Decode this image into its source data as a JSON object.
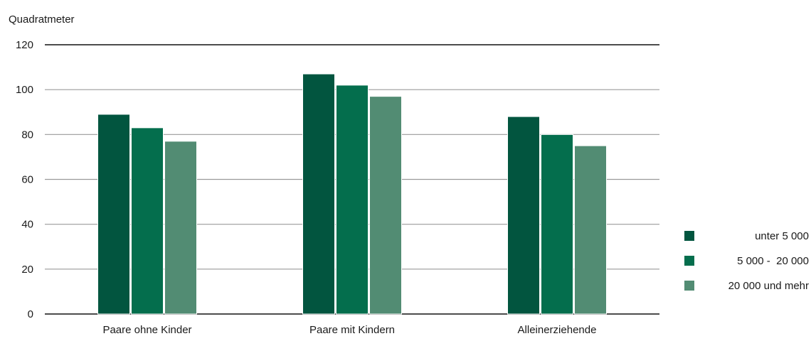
{
  "chart_data": {
    "type": "bar",
    "ylabel": "Quadratmeter",
    "xlabel": "",
    "ylim": [
      0,
      120
    ],
    "yticks": [
      0,
      20,
      40,
      60,
      80,
      100,
      120
    ],
    "ytick_labels": [
      "0",
      "20",
      "40",
      "60",
      "80",
      "100",
      "120"
    ],
    "categories": [
      "Paare ohne Kinder",
      "Paare mit Kindern",
      "Alleinerziehende"
    ],
    "series": [
      {
        "name": "unter 5 000",
        "color": "#02553f",
        "values": [
          89,
          107,
          88
        ]
      },
      {
        "name": "5 000 -  20 000",
        "color": "#046e4d",
        "values": [
          83,
          102,
          80
        ]
      },
      {
        "name": "20 000 und mehr",
        "color": "#528c73",
        "values": [
          77,
          97,
          75
        ]
      }
    ],
    "grid": true,
    "legend_position": "right"
  }
}
